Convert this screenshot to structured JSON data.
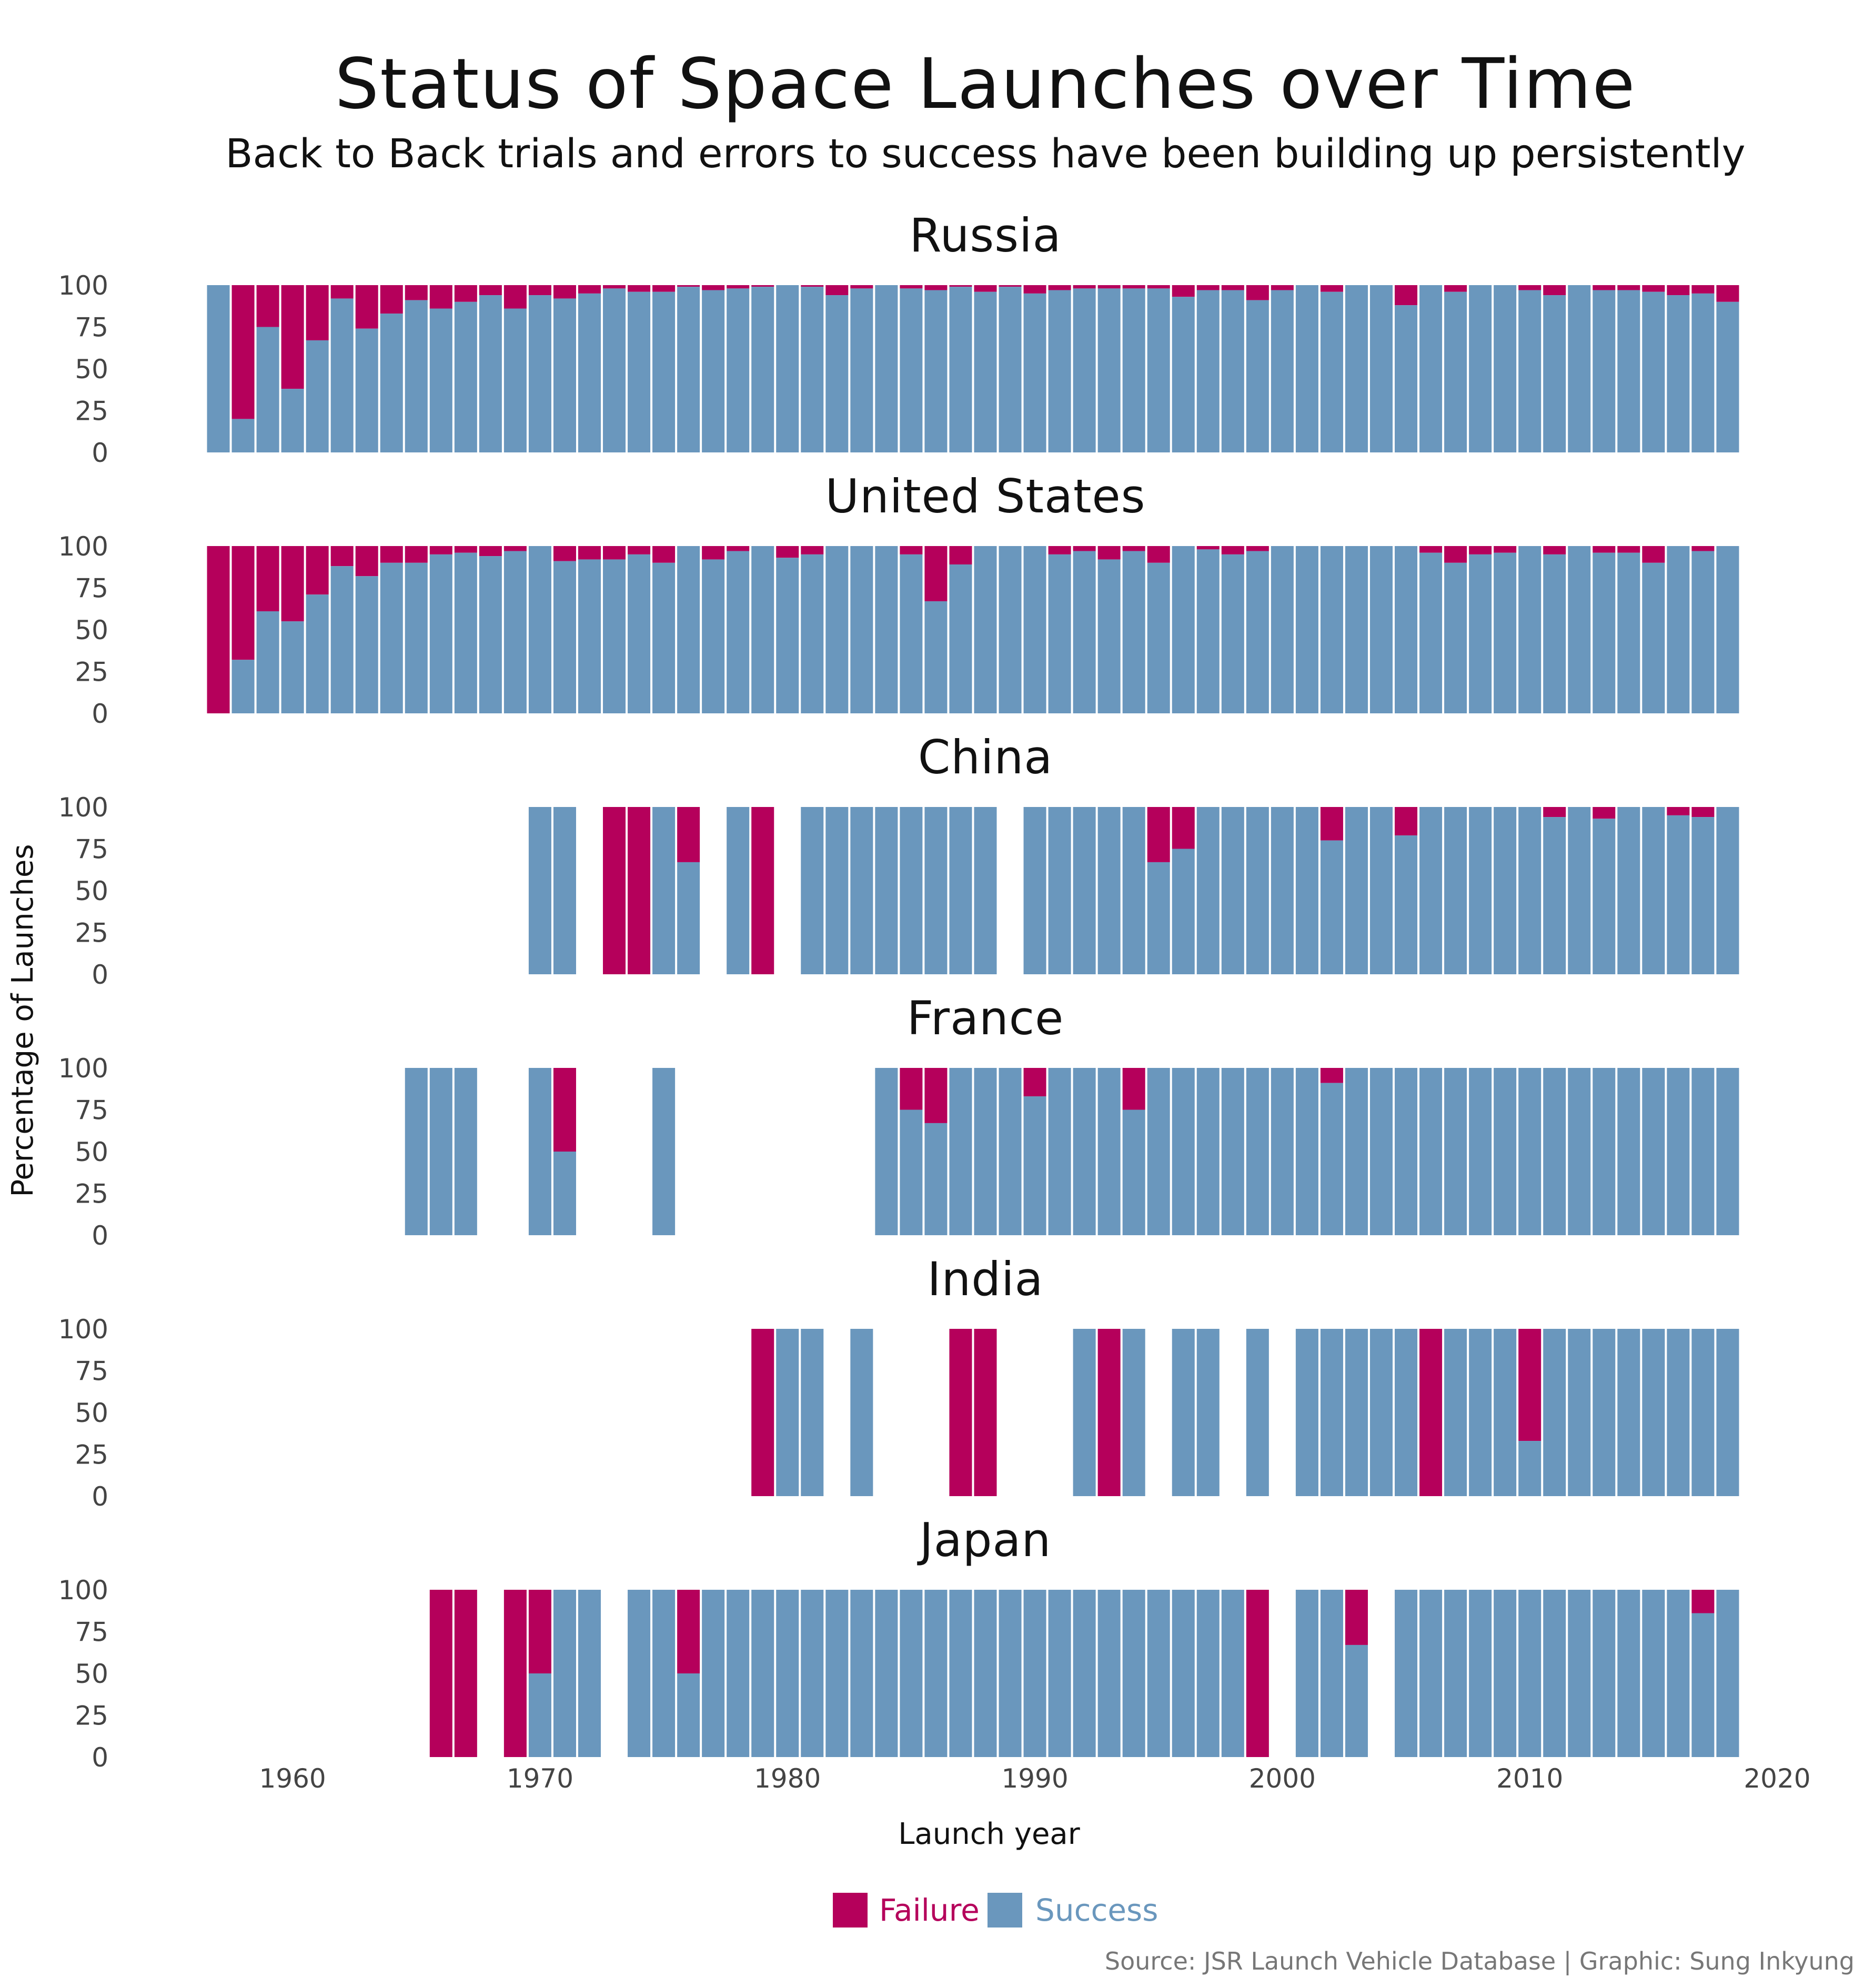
{
  "chart_data": {
    "type": "bar",
    "stacked": true,
    "title": "Status of Space Launches over Time",
    "subtitle": "Back to Back trials and errors to success have been  building up persistently",
    "xlabel": "Launch year",
    "ylabel": "Percentage of Launches",
    "x_ticks": [
      1960,
      1970,
      1980,
      1990,
      2000,
      2010,
      2020
    ],
    "y_ticks": [
      0,
      25,
      50,
      75,
      100
    ],
    "xlim": [
      1956,
      2020
    ],
    "ylim": [
      0,
      100
    ],
    "legend": {
      "position": "bottom",
      "items": [
        {
          "name": "Failure",
          "color": "#b5005b"
        },
        {
          "name": "Success",
          "color": "#6a97bd"
        }
      ]
    },
    "caption": "Source: JSR Launch Vehicle Database | Graphic: Sung Inkyung",
    "years": [
      1957,
      1958,
      1959,
      1960,
      1961,
      1962,
      1963,
      1964,
      1965,
      1966,
      1967,
      1968,
      1969,
      1970,
      1971,
      1972,
      1973,
      1974,
      1975,
      1976,
      1977,
      1978,
      1979,
      1980,
      1981,
      1982,
      1983,
      1984,
      1985,
      1986,
      1987,
      1988,
      1989,
      1990,
      1991,
      1992,
      1993,
      1994,
      1995,
      1996,
      1997,
      1998,
      1999,
      2000,
      2001,
      2002,
      2003,
      2004,
      2005,
      2006,
      2007,
      2008,
      2009,
      2010,
      2011,
      2012,
      2013,
      2014,
      2015,
      2016,
      2017,
      2018
    ],
    "series_note": "values are percentage of successful launches per year; failure share = 100 - success; null = no launches",
    "facets": [
      {
        "name": "Russia",
        "success_pct": [
          100,
          20,
          75,
          38,
          67,
          92,
          74,
          83,
          91,
          86,
          90,
          94,
          86,
          94,
          92,
          95,
          98,
          96,
          96,
          99,
          97,
          98,
          99,
          100,
          99,
          94,
          98,
          100,
          98,
          97,
          99,
          96,
          99,
          95,
          97,
          98,
          98,
          98,
          98,
          93,
          97,
          97,
          91,
          97,
          100,
          96,
          100,
          100,
          88,
          100,
          96,
          100,
          100,
          97,
          94,
          100,
          97,
          97,
          96,
          94,
          95,
          90
        ]
      },
      {
        "name": "United States",
        "success_pct": [
          0,
          32,
          61,
          55,
          71,
          88,
          82,
          90,
          90,
          95,
          96,
          94,
          97,
          100,
          91,
          92,
          92,
          95,
          90,
          100,
          92,
          97,
          100,
          93,
          95,
          100,
          100,
          100,
          95,
          67,
          89,
          100,
          100,
          100,
          95,
          97,
          92,
          97,
          90,
          100,
          98,
          95,
          97,
          100,
          100,
          100,
          100,
          100,
          100,
          96,
          90,
          95,
          96,
          100,
          95,
          100,
          96,
          96,
          90,
          100,
          97,
          100
        ]
      },
      {
        "name": "China",
        "success_pct": [
          null,
          null,
          null,
          null,
          null,
          null,
          null,
          null,
          null,
          null,
          null,
          null,
          null,
          100,
          100,
          null,
          0,
          0,
          100,
          67,
          null,
          100,
          0,
          null,
          100,
          100,
          100,
          100,
          100,
          100,
          100,
          100,
          null,
          100,
          100,
          100,
          100,
          100,
          67,
          75,
          100,
          100,
          100,
          100,
          100,
          80,
          100,
          100,
          83,
          100,
          100,
          100,
          100,
          100,
          94,
          100,
          93,
          100,
          100,
          95,
          94,
          100
        ]
      },
      {
        "name": "France",
        "success_pct": [
          null,
          null,
          null,
          null,
          null,
          null,
          null,
          null,
          100,
          100,
          100,
          null,
          null,
          100,
          50,
          null,
          null,
          null,
          100,
          null,
          null,
          null,
          null,
          null,
          null,
          null,
          null,
          100,
          75,
          67,
          100,
          100,
          100,
          83,
          100,
          100,
          100,
          75,
          100,
          100,
          100,
          100,
          100,
          100,
          100,
          91,
          100,
          100,
          100,
          100,
          100,
          100,
          100,
          100,
          100,
          100,
          100,
          100,
          100,
          100,
          100,
          100
        ]
      },
      {
        "name": "India",
        "success_pct": [
          null,
          null,
          null,
          null,
          null,
          null,
          null,
          null,
          null,
          null,
          null,
          null,
          null,
          null,
          null,
          null,
          null,
          null,
          null,
          null,
          null,
          null,
          0,
          100,
          100,
          null,
          100,
          null,
          null,
          null,
          0,
          0,
          null,
          null,
          null,
          100,
          0,
          100,
          null,
          100,
          100,
          null,
          100,
          null,
          100,
          100,
          100,
          100,
          100,
          0,
          100,
          100,
          100,
          33,
          100,
          100,
          100,
          100,
          100,
          100,
          100,
          100
        ]
      },
      {
        "name": "Japan",
        "success_pct": [
          null,
          null,
          null,
          null,
          null,
          null,
          null,
          null,
          null,
          0,
          0,
          null,
          0,
          50,
          100,
          100,
          null,
          100,
          100,
          50,
          100,
          100,
          100,
          100,
          100,
          100,
          100,
          100,
          100,
          100,
          100,
          100,
          100,
          100,
          100,
          100,
          100,
          100,
          100,
          100,
          100,
          100,
          0,
          null,
          100,
          100,
          67,
          null,
          100,
          100,
          100,
          100,
          100,
          100,
          100,
          100,
          100,
          100,
          100,
          100,
          86,
          100
        ]
      }
    ]
  }
}
